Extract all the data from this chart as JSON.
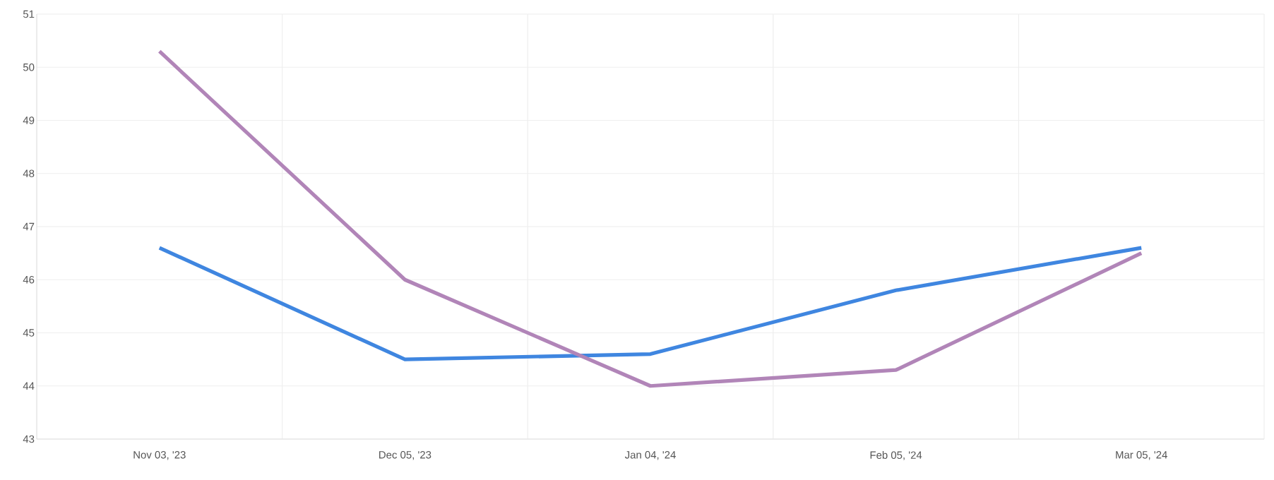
{
  "chart_data": {
    "type": "line",
    "categories": [
      "Nov 03, '23",
      "Dec 05, '23",
      "Jan 04, '24",
      "Feb 05, '24",
      "Mar 05, '24"
    ],
    "series": [
      {
        "color": "#3f86e0",
        "values": [
          46.6,
          44.5,
          44.6,
          45.8,
          46.6
        ]
      },
      {
        "color": "#b185b8",
        "values": [
          50.3,
          46.0,
          44.0,
          44.3,
          46.5
        ]
      }
    ],
    "ylim": [
      43,
      51
    ],
    "yticks": [
      43,
      44,
      45,
      46,
      47,
      48,
      49,
      50,
      51
    ],
    "grid": true,
    "marker": "none",
    "line_style": "solid"
  }
}
